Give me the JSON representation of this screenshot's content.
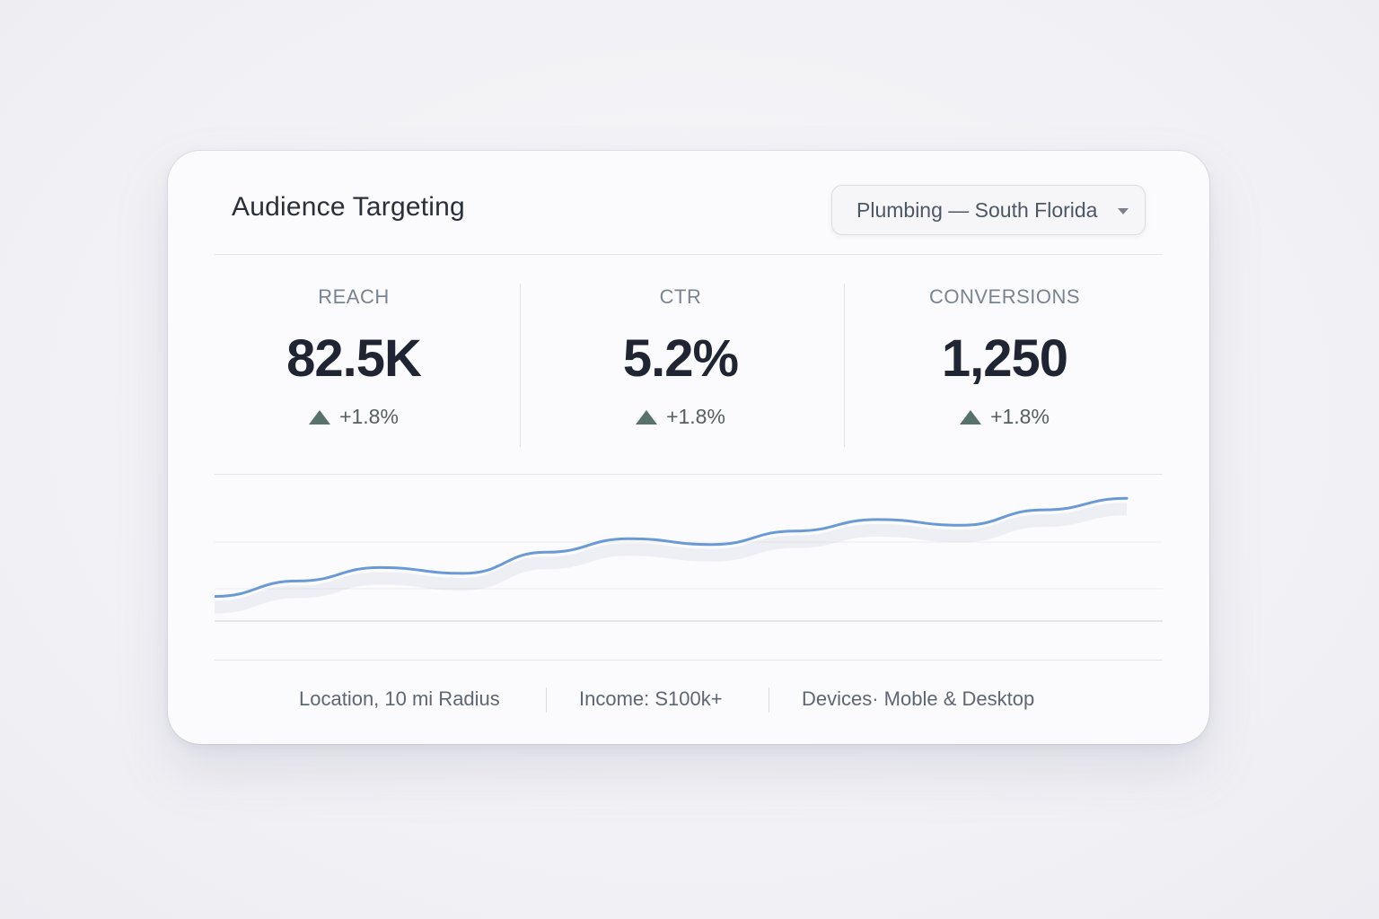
{
  "card": {
    "title": "Audience Targeting",
    "dropdown": {
      "selected": "Plumbing — South Florida"
    }
  },
  "metrics": [
    {
      "label": "REACH",
      "value": "82.5K",
      "delta": "+1.8%"
    },
    {
      "label": "CTR",
      "value": "5.2%",
      "delta": "+1.8%"
    },
    {
      "label": "CONVERSIONS",
      "value": "1,250",
      "delta": "+1.8%"
    }
  ],
  "chart_data": {
    "type": "line",
    "title": "",
    "xlabel": "",
    "ylabel": "",
    "grid": true,
    "x": [
      0,
      1,
      2,
      3,
      4,
      5,
      6,
      7,
      8,
      9,
      10,
      11
    ],
    "series": [
      {
        "values": [
          10,
          18,
          25,
          22,
          33,
          40,
          37,
          44,
          50,
          47,
          55,
          61
        ],
        "color": "#6a9ad6"
      }
    ],
    "ylim": [
      0,
      70
    ]
  },
  "footer": {
    "items": [
      "Location, 10 mi Radius",
      "Income: S100k+",
      "Devices· Moble & Desktop"
    ]
  },
  "colors": {
    "accent_line": "#6a9ad6",
    "delta_up": "#57726a"
  }
}
